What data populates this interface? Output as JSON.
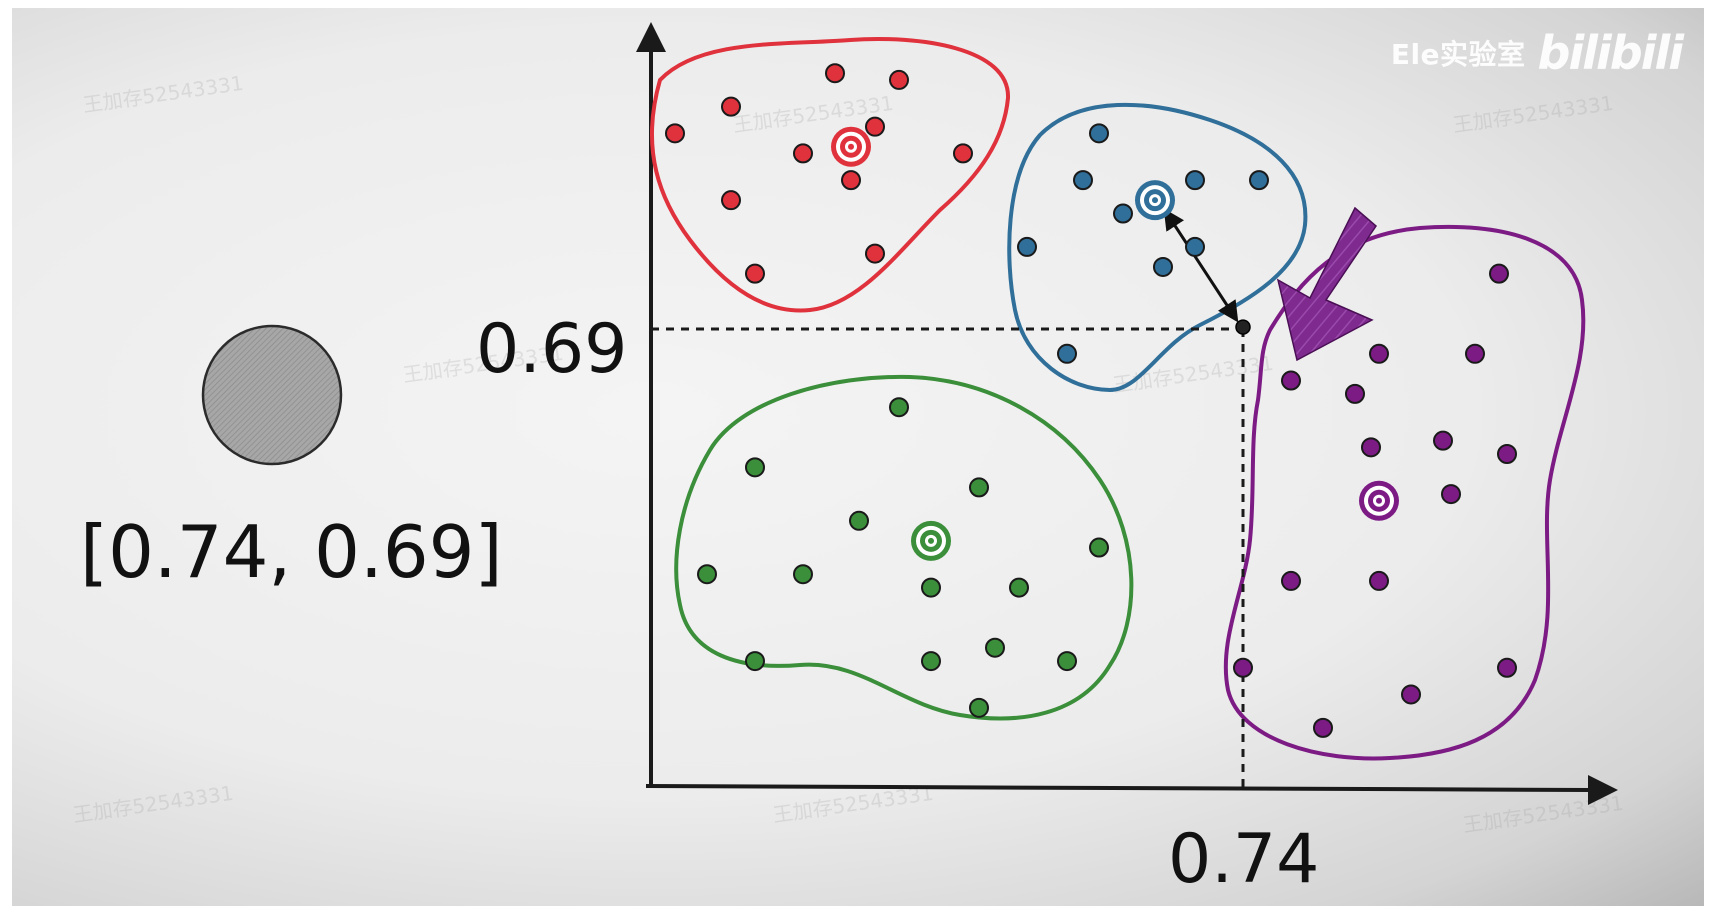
{
  "point_vector_label": "[0.74, 0.69]",
  "y_value_label": "0.69",
  "x_value_label": "0.74",
  "logo": {
    "text": "Ele实验室",
    "mark": "bilibili"
  },
  "watermark_text": "王加存52543331",
  "colors": {
    "red": "#e0323c",
    "blue": "#2f6f99",
    "green": "#3b8f3b",
    "purple": "#7d1b85",
    "point": "#222222",
    "arrow": "#7e2a8f"
  },
  "chart_data": {
    "type": "scatter",
    "query_point": {
      "x": 0.74,
      "y": 0.69
    },
    "xlim": [
      0,
      1.2
    ],
    "ylim": [
      0,
      1.12
    ],
    "clusters": [
      {
        "color": "red",
        "centroid": {
          "x": 0.25,
          "y": 0.96
        },
        "points": [
          [
            0.03,
            0.98
          ],
          [
            0.1,
            1.02
          ],
          [
            0.19,
            0.95
          ],
          [
            0.23,
            1.07
          ],
          [
            0.28,
            0.99
          ],
          [
            0.31,
            1.06
          ],
          [
            0.25,
            0.91
          ],
          [
            0.1,
            0.88
          ],
          [
            0.13,
            0.77
          ],
          [
            0.28,
            0.8
          ],
          [
            0.39,
            0.95
          ]
        ]
      },
      {
        "color": "blue",
        "centroid": {
          "x": 0.63,
          "y": 0.88
        },
        "points": [
          [
            0.56,
            0.98
          ],
          [
            0.54,
            0.91
          ],
          [
            0.47,
            0.81
          ],
          [
            0.59,
            0.86
          ],
          [
            0.68,
            0.81
          ],
          [
            0.64,
            0.78
          ],
          [
            0.68,
            0.91
          ],
          [
            0.76,
            0.91
          ],
          [
            0.52,
            0.65
          ]
        ]
      },
      {
        "color": "green",
        "centroid": {
          "x": 0.35,
          "y": 0.37
        },
        "points": [
          [
            0.31,
            0.57
          ],
          [
            0.13,
            0.48
          ],
          [
            0.41,
            0.45
          ],
          [
            0.26,
            0.4
          ],
          [
            0.07,
            0.32
          ],
          [
            0.19,
            0.32
          ],
          [
            0.35,
            0.3
          ],
          [
            0.46,
            0.3
          ],
          [
            0.56,
            0.36
          ],
          [
            0.13,
            0.19
          ],
          [
            0.35,
            0.19
          ],
          [
            0.43,
            0.21
          ],
          [
            0.52,
            0.19
          ],
          [
            0.41,
            0.12
          ]
        ]
      },
      {
        "color": "purple",
        "centroid": {
          "x": 0.91,
          "y": 0.43
        },
        "points": [
          [
            1.06,
            0.77
          ],
          [
            0.91,
            0.65
          ],
          [
            1.03,
            0.65
          ],
          [
            0.8,
            0.61
          ],
          [
            0.88,
            0.59
          ],
          [
            0.9,
            0.51
          ],
          [
            0.99,
            0.52
          ],
          [
            1.07,
            0.5
          ],
          [
            1.0,
            0.44
          ],
          [
            0.8,
            0.31
          ],
          [
            0.91,
            0.31
          ],
          [
            0.74,
            0.18
          ],
          [
            1.07,
            0.18
          ],
          [
            0.95,
            0.14
          ],
          [
            0.84,
            0.09
          ]
        ]
      }
    ]
  }
}
